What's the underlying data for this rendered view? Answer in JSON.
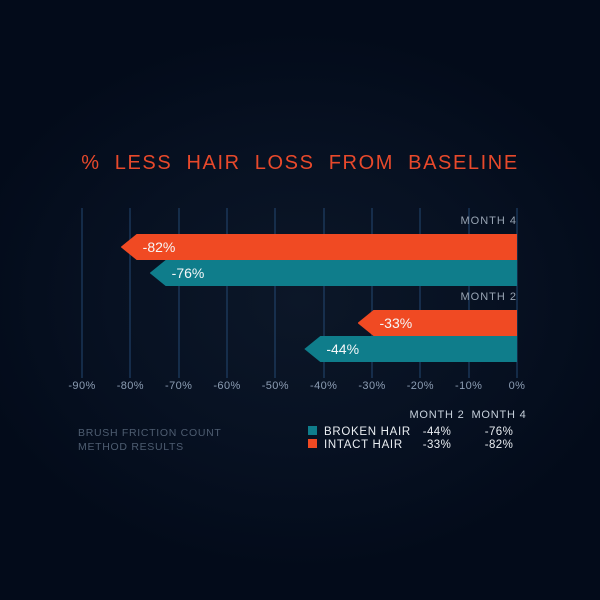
{
  "colors": {
    "background": "#061020",
    "title": "#E8492B",
    "broken_hair_teal": "#0F7D8B",
    "intact_hair_orange": "#F04A23",
    "axis_text": "#8C9DB3",
    "gridline": "#2D5A8C"
  },
  "chart_data": {
    "type": "bar",
    "orientation": "horizontal",
    "title": "% LESS HAIR LOSS FROM BASELINE",
    "xlabel": "",
    "ylabel": "",
    "axis": {
      "min": -90,
      "max": 0,
      "tick_step": 10,
      "tick_labels": [
        "-90%",
        "-80%",
        "-70%",
        "-60%",
        "-50%",
        "-40%",
        "-30%",
        "-20%",
        "-10%",
        "0%"
      ]
    },
    "series_colors": {
      "INTACT HAIR": "#F04A23",
      "BROKEN HAIR": "#0F7D8B"
    },
    "groups": [
      {
        "label": "MONTH 4",
        "bars": [
          {
            "series": "INTACT HAIR",
            "value": -82,
            "label": "-82%"
          },
          {
            "series": "BROKEN HAIR",
            "value": -76,
            "label": "-76%"
          }
        ]
      },
      {
        "label": "MONTH 2",
        "bars": [
          {
            "series": "INTACT HAIR",
            "value": -33,
            "label": "-33%"
          },
          {
            "series": "BROKEN HAIR",
            "value": -44,
            "label": "-44%"
          }
        ]
      }
    ],
    "legend_position": "bottom"
  },
  "legend": {
    "columns": [
      "MONTH 2",
      "MONTH 4"
    ],
    "items": [
      {
        "label": "BROKEN HAIR",
        "color": "#0F7D8B",
        "month2": "-44%",
        "month4": "-76%"
      },
      {
        "label": "INTACT HAIR",
        "color": "#F04A23",
        "month2": "-33%",
        "month4": "-82%"
      }
    ]
  },
  "footnote": {
    "line1": "BRUSH FRICTION COUNT",
    "line2": "METHOD RESULTS"
  }
}
